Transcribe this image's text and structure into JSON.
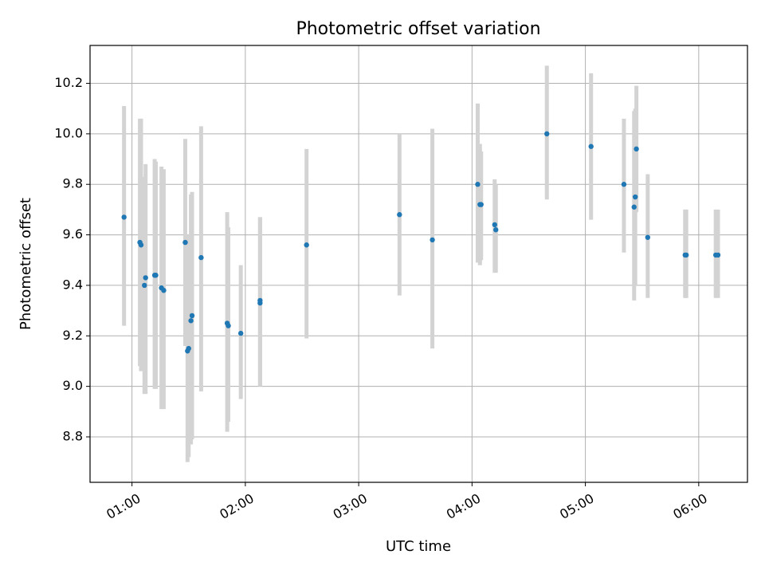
{
  "chart_data": {
    "type": "scatter",
    "title": "Photometric offset variation",
    "xlabel": "UTC time",
    "ylabel": "Photometric offset",
    "x_unit": "hours UTC",
    "xlim": [
      0.63,
      6.43
    ],
    "ylim": [
      8.62,
      10.35
    ],
    "xticks": [
      {
        "value": 1,
        "label": "01:00"
      },
      {
        "value": 2,
        "label": "02:00"
      },
      {
        "value": 3,
        "label": "03:00"
      },
      {
        "value": 4,
        "label": "04:00"
      },
      {
        "value": 5,
        "label": "05:00"
      },
      {
        "value": 6,
        "label": "06:00"
      }
    ],
    "yticks": [
      {
        "value": 8.8,
        "label": "8.8"
      },
      {
        "value": 9.0,
        "label": "9.0"
      },
      {
        "value": 9.2,
        "label": "9.2"
      },
      {
        "value": 9.4,
        "label": "9.4"
      },
      {
        "value": 9.6,
        "label": "9.6"
      },
      {
        "value": 9.8,
        "label": "9.8"
      },
      {
        "value": 10.0,
        "label": "10.0"
      },
      {
        "value": 10.2,
        "label": "10.2"
      }
    ],
    "grid": true,
    "point_color": "#1f77b4",
    "errorbar_color": "#d3d3d3",
    "series": [
      {
        "points": [
          {
            "x": 0.93,
            "y": 9.67,
            "ylow": 9.24,
            "yhigh": 10.11
          },
          {
            "x": 1.07,
            "y": 9.57,
            "ylow": 9.08,
            "yhigh": 10.06
          },
          {
            "x": 1.08,
            "y": 9.56,
            "ylow": 9.06,
            "yhigh": 10.06
          },
          {
            "x": 1.11,
            "y": 9.4,
            "ylow": 8.97,
            "yhigh": 9.83
          },
          {
            "x": 1.12,
            "y": 9.43,
            "ylow": 8.97,
            "yhigh": 9.88
          },
          {
            "x": 1.2,
            "y": 9.44,
            "ylow": 8.99,
            "yhigh": 9.9
          },
          {
            "x": 1.21,
            "y": 9.44,
            "ylow": 8.99,
            "yhigh": 9.89
          },
          {
            "x": 1.26,
            "y": 9.39,
            "ylow": 8.91,
            "yhigh": 9.87
          },
          {
            "x": 1.28,
            "y": 9.38,
            "ylow": 8.91,
            "yhigh": 9.86
          },
          {
            "x": 1.47,
            "y": 9.57,
            "ylow": 9.16,
            "yhigh": 9.98
          },
          {
            "x": 1.49,
            "y": 9.14,
            "ylow": 8.7,
            "yhigh": 9.6
          },
          {
            "x": 1.5,
            "y": 9.15,
            "ylow": 8.72,
            "yhigh": 9.6
          },
          {
            "x": 1.52,
            "y": 9.26,
            "ylow": 8.77,
            "yhigh": 9.76
          },
          {
            "x": 1.53,
            "y": 9.28,
            "ylow": 8.79,
            "yhigh": 9.77
          },
          {
            "x": 1.61,
            "y": 9.51,
            "ylow": 8.98,
            "yhigh": 10.03
          },
          {
            "x": 1.84,
            "y": 9.25,
            "ylow": 8.82,
            "yhigh": 9.69
          },
          {
            "x": 1.85,
            "y": 9.24,
            "ylow": 8.86,
            "yhigh": 9.63
          },
          {
            "x": 1.96,
            "y": 9.21,
            "ylow": 8.95,
            "yhigh": 9.48
          },
          {
            "x": 2.13,
            "y": 9.33,
            "ylow": 9.0,
            "yhigh": 9.67
          },
          {
            "x": 2.13,
            "y": 9.34,
            "ylow": 9.0,
            "yhigh": 9.67
          },
          {
            "x": 2.54,
            "y": 9.56,
            "ylow": 9.19,
            "yhigh": 9.94
          },
          {
            "x": 3.36,
            "y": 9.68,
            "ylow": 9.36,
            "yhigh": 10.0
          },
          {
            "x": 3.65,
            "y": 9.58,
            "ylow": 9.15,
            "yhigh": 10.02
          },
          {
            "x": 4.05,
            "y": 9.8,
            "ylow": 9.49,
            "yhigh": 10.12
          },
          {
            "x": 4.07,
            "y": 9.72,
            "ylow": 9.48,
            "yhigh": 9.96
          },
          {
            "x": 4.08,
            "y": 9.72,
            "ylow": 9.5,
            "yhigh": 9.93
          },
          {
            "x": 4.2,
            "y": 9.64,
            "ylow": 9.45,
            "yhigh": 9.82
          },
          {
            "x": 4.21,
            "y": 9.62,
            "ylow": 9.45,
            "yhigh": 9.8
          },
          {
            "x": 4.66,
            "y": 10.0,
            "ylow": 9.74,
            "yhigh": 10.27
          },
          {
            "x": 5.05,
            "y": 9.95,
            "ylow": 9.66,
            "yhigh": 10.24
          },
          {
            "x": 5.34,
            "y": 9.8,
            "ylow": 9.53,
            "yhigh": 10.06
          },
          {
            "x": 5.43,
            "y": 9.71,
            "ylow": 9.34,
            "yhigh": 10.09
          },
          {
            "x": 5.44,
            "y": 9.75,
            "ylow": 9.4,
            "yhigh": 10.1
          },
          {
            "x": 5.45,
            "y": 9.94,
            "ylow": 9.69,
            "yhigh": 10.19
          },
          {
            "x": 5.55,
            "y": 9.59,
            "ylow": 9.35,
            "yhigh": 9.84
          },
          {
            "x": 5.88,
            "y": 9.52,
            "ylow": 9.35,
            "yhigh": 9.7
          },
          {
            "x": 5.89,
            "y": 9.52,
            "ylow": 9.35,
            "yhigh": 9.7
          },
          {
            "x": 6.15,
            "y": 9.52,
            "ylow": 9.35,
            "yhigh": 9.7
          },
          {
            "x": 6.17,
            "y": 9.52,
            "ylow": 9.35,
            "yhigh": 9.7
          }
        ]
      }
    ]
  }
}
